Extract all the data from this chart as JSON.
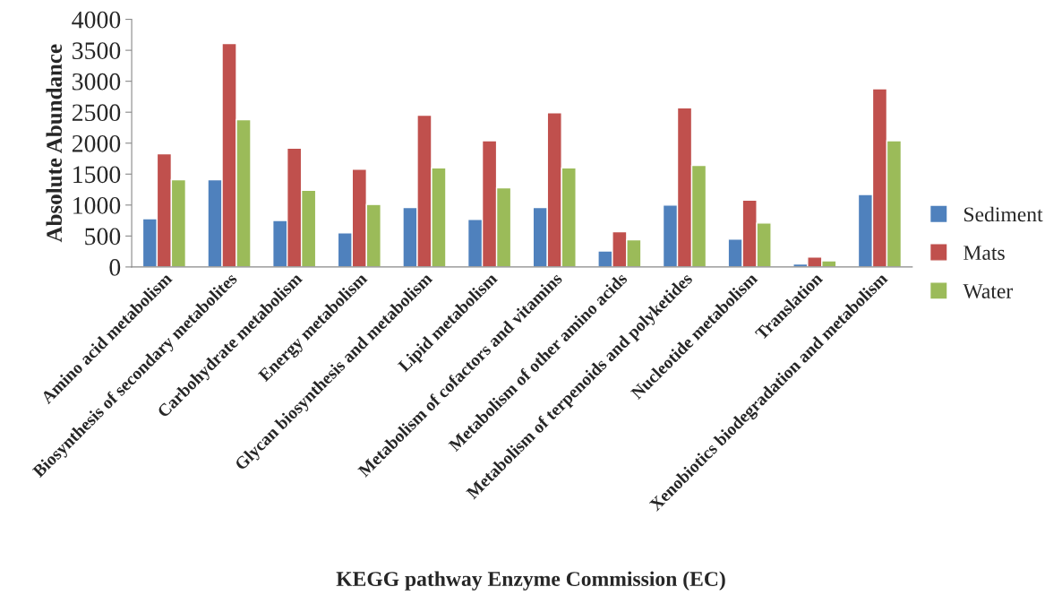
{
  "chart_data": {
    "type": "bar",
    "xlabel": "KEGG pathway Enzyme Commission (EC)",
    "ylabel": "Absolute Abundance",
    "categories": [
      "Amino acid metabolism",
      "Biosynthesis of secondary metabolites",
      "Carbohydrate metabolism",
      "Energy metabolism",
      "Glycan biosynthesis and metabolism",
      "Lipid metabolism",
      "Metabolism of cofactors and vitamins",
      "Metabolism of other amino acids",
      "Metabolism of terpenoids and polyketides",
      "Nucleotide metabolism",
      "Translation",
      "Xenobiotics biodegradation and metabolism"
    ],
    "series": [
      {
        "name": "Sediment",
        "color": "#4f81bd",
        "values": [
          780,
          1410,
          750,
          550,
          960,
          770,
          960,
          260,
          1000,
          450,
          50,
          1170
        ]
      },
      {
        "name": "Mats",
        "color": "#c0504d",
        "values": [
          1830,
          3610,
          1920,
          1580,
          2450,
          2040,
          2490,
          570,
          2570,
          1080,
          160,
          2880
        ]
      },
      {
        "name": "Water",
        "color": "#9bbb59",
        "values": [
          1410,
          2380,
          1240,
          1010,
          1600,
          1280,
          1600,
          440,
          1640,
          710,
          100,
          2040
        ]
      }
    ],
    "ylim": [
      0,
      4000
    ],
    "yticks": [
      0,
      500,
      1000,
      1500,
      2000,
      2500,
      3000,
      3500,
      4000
    ],
    "grid": false,
    "legend": "right"
  }
}
